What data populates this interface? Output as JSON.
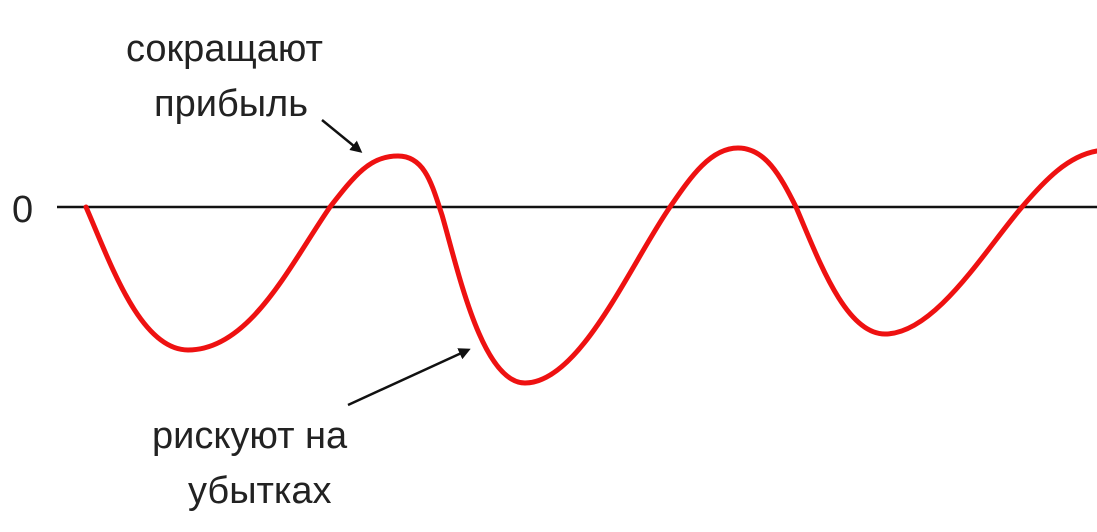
{
  "diagram": {
    "zero_label": "0",
    "annotation_top": {
      "line1": "сокращают",
      "line2": "прибыль"
    },
    "annotation_bottom": {
      "line1": "рискуют на",
      "line2": "убытках"
    },
    "colors": {
      "curve": "#ee1111",
      "axis": "#111111",
      "arrow": "#111111",
      "text": "#222222"
    }
  }
}
